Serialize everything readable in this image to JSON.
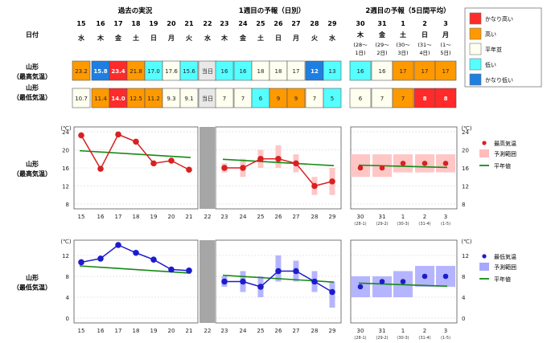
{
  "header": {
    "section_past": "過去の実況",
    "section_week1": "1週目の予報（日別）",
    "section_week2": "2週目の予報（5日間平均）",
    "row_label_date": "日付",
    "row_label_max": [
      "山形",
      "（最高気温）"
    ],
    "row_label_min": [
      "山形",
      "（最低気温）"
    ],
    "today_label": "当日"
  },
  "days": [
    {
      "date": "15",
      "dow": "水",
      "dow_color": "#111"
    },
    {
      "date": "16",
      "dow": "木",
      "dow_color": "#111"
    },
    {
      "date": "17",
      "dow": "金",
      "dow_color": "#111"
    },
    {
      "date": "18",
      "dow": "土",
      "dow_color": "#111"
    },
    {
      "date": "19",
      "dow": "日",
      "dow_color": "#111"
    },
    {
      "date": "20",
      "dow": "月",
      "dow_color": "#111"
    },
    {
      "date": "21",
      "dow": "火",
      "dow_color": "#111"
    },
    {
      "date": "22",
      "dow": "水",
      "dow_color": "#111"
    },
    {
      "date": "23",
      "dow": "木",
      "dow_color": "#111"
    },
    {
      "date": "24",
      "dow": "金",
      "dow_color": "#111"
    },
    {
      "date": "25",
      "dow": "土",
      "dow_color": "#111"
    },
    {
      "date": "26",
      "dow": "日",
      "dow_color": "#111"
    },
    {
      "date": "27",
      "dow": "月",
      "dow_color": "#111"
    },
    {
      "date": "28",
      "dow": "火",
      "dow_color": "#111"
    },
    {
      "date": "29",
      "dow": "水",
      "dow_color": "#111"
    }
  ],
  "week2_days": [
    {
      "date": "30",
      "dow": "木",
      "range": [
        "(28～",
        "1日)"
      ]
    },
    {
      "date": "31",
      "dow": "金",
      "range": [
        "(29～",
        "2日)"
      ]
    },
    {
      "date": "1",
      "dow": "土",
      "range": [
        "(30～",
        "3日)"
      ]
    },
    {
      "date": "2",
      "dow": "日",
      "range": [
        "(31～",
        "4日)"
      ]
    },
    {
      "date": "3",
      "dow": "月",
      "range": [
        "(1～",
        "5日)"
      ]
    }
  ],
  "table": {
    "max_row": [
      "23.2",
      "15.8",
      "23.4",
      "21.8",
      "17.0",
      "17.6",
      "15.6",
      "当日",
      "16",
      "16",
      "18",
      "18",
      "17",
      "12",
      "13"
    ],
    "max_cls": [
      "high",
      "vlow",
      "vhigh",
      "high",
      "low",
      "normal",
      "low",
      "today",
      "low",
      "low",
      "normal",
      "normal",
      "normal",
      "vlow",
      "low"
    ],
    "min_row": [
      "10.7",
      "11.4",
      "14.0",
      "12.5",
      "11.2",
      "9.3",
      "9.1",
      "当日",
      "7",
      "7",
      "6",
      "9",
      "9",
      "7",
      "5"
    ],
    "min_cls": [
      "normal",
      "high",
      "vhigh",
      "high",
      "high",
      "normal",
      "normal",
      "today",
      "normal",
      "normal",
      "low",
      "high",
      "high",
      "normal",
      "low"
    ],
    "w2_max": [
      "16",
      "16",
      "17",
      "17",
      "17"
    ],
    "w2_max_cls": [
      "low",
      "normal",
      "high",
      "high",
      "high"
    ],
    "w2_min": [
      "6",
      "7",
      "7",
      "8",
      "8"
    ],
    "w2_min_cls": [
      "normal",
      "normal",
      "high",
      "vhigh",
      "vhigh"
    ]
  },
  "legend_table": [
    {
      "key": "vhigh",
      "label": "かなり高い",
      "color": "#ff2a2a"
    },
    {
      "key": "high",
      "label": "高い",
      "color": "#ff9900"
    },
    {
      "key": "normal",
      "label": "平年並",
      "color": "#fffff0"
    },
    {
      "key": "low",
      "label": "低い",
      "color": "#55ffff"
    },
    {
      "key": "vlow",
      "label": "かなり低い",
      "color": "#1e7fe0"
    }
  ],
  "colors": {
    "today": "#e8e8e8",
    "max_line": "#d92020",
    "max_range": "#ffbcbc",
    "min_line": "#1c1ccc",
    "min_range": "#a8a8ff",
    "normal_line": "#158a15",
    "today_bar": "#a6a6a6"
  },
  "chart_data": [
    {
      "type": "line",
      "title": "山形（最高気温）",
      "unit": "(℃)",
      "ylim": [
        8,
        24
      ],
      "yticks": [
        8,
        12,
        16,
        20,
        24
      ],
      "past": {
        "x": [
          "15",
          "16",
          "17",
          "18",
          "19",
          "20",
          "21"
        ],
        "values": [
          23.2,
          15.8,
          23.4,
          21.8,
          17.0,
          17.6,
          15.6
        ]
      },
      "week1": {
        "x": [
          "23",
          "24",
          "25",
          "26",
          "27",
          "28",
          "29"
        ],
        "values": [
          16,
          16,
          18,
          18,
          17,
          12,
          13
        ],
        "range_low": [
          15,
          14,
          16,
          16,
          15,
          10,
          10
        ],
        "range_high": [
          17,
          18,
          20,
          21,
          19,
          14,
          16
        ]
      },
      "week2": {
        "x": [
          "30",
          "31",
          "1",
          "2",
          "3"
        ],
        "sub": [
          "(28-1)",
          "(29-2)",
          "(30-3)",
          "(31-4)",
          "(1-5)"
        ],
        "values": [
          16,
          16,
          17,
          17,
          17
        ],
        "range_low": [
          14,
          14,
          15,
          15,
          15
        ],
        "range_high": [
          19,
          19,
          19,
          19,
          19
        ]
      },
      "normal": {
        "past": [
          19.8,
          18.3
        ],
        "week1": [
          17.9,
          16.5
        ],
        "week2": [
          16.6,
          16.1
        ]
      },
      "legend": [
        "最高気温",
        "予測範囲",
        "平年値"
      ]
    },
    {
      "type": "line",
      "title": "山形（最低気温）",
      "unit": "(℃)",
      "ylim": [
        0,
        14
      ],
      "yticks": [
        0,
        4,
        8,
        12
      ],
      "past": {
        "x": [
          "15",
          "16",
          "17",
          "18",
          "19",
          "20",
          "21"
        ],
        "values": [
          10.7,
          11.4,
          14.0,
          12.5,
          11.2,
          9.3,
          9.1
        ]
      },
      "week1": {
        "x": [
          "23",
          "24",
          "25",
          "26",
          "27",
          "28",
          "29"
        ],
        "values": [
          7,
          7,
          6,
          9,
          9,
          7,
          5
        ],
        "range_low": [
          6,
          5,
          4,
          7,
          7,
          5,
          2
        ],
        "range_high": [
          8,
          9,
          8,
          12,
          11,
          9,
          7
        ]
      },
      "week2": {
        "x": [
          "30",
          "31",
          "1",
          "2",
          "3"
        ],
        "sub": [
          "(28-1)",
          "(29-2)",
          "(30-3)",
          "(31-4)",
          "(1-5)"
        ],
        "values": [
          6,
          7,
          7,
          8,
          8
        ],
        "range_low": [
          4,
          4,
          4,
          6,
          6
        ],
        "range_high": [
          8,
          8,
          9,
          10,
          10
        ]
      },
      "normal": {
        "past": [
          10.0,
          8.6
        ],
        "week1": [
          8.2,
          6.9
        ],
        "week2": [
          6.7,
          6.1
        ]
      },
      "legend": [
        "最低気温",
        "予測範囲",
        "平年値"
      ]
    }
  ]
}
